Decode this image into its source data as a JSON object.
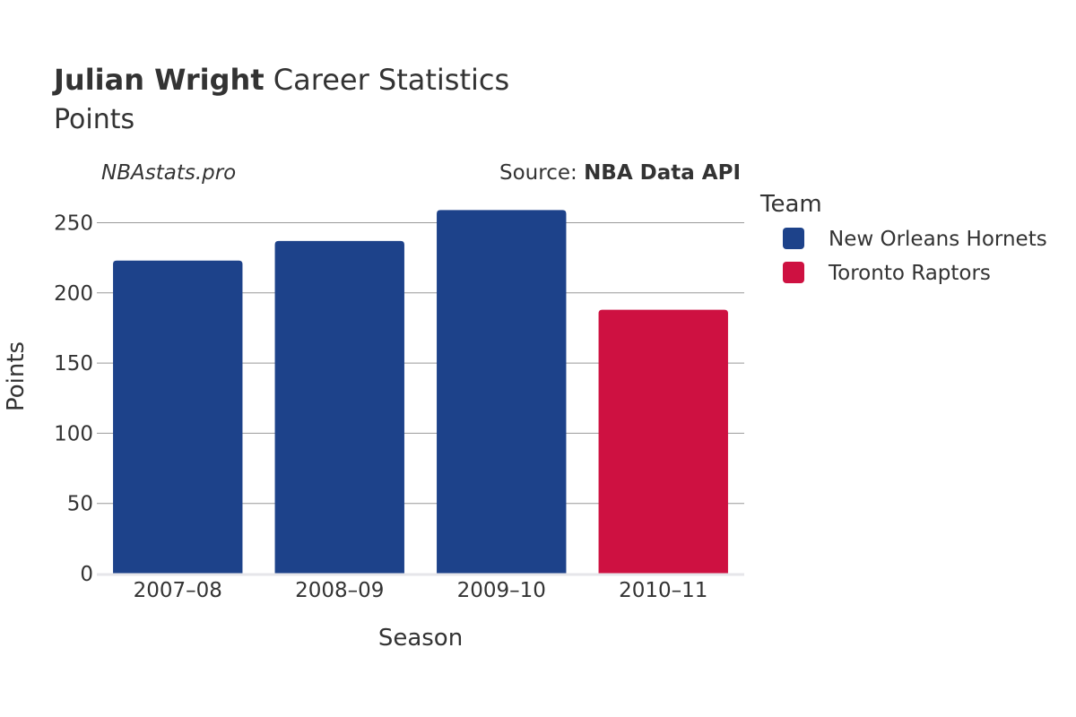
{
  "header": {
    "title_bold": "Julian Wright",
    "title_rest": " Career Statistics",
    "subtitle": "Points",
    "watermark": "NBAstats.pro",
    "source_prefix": "Source: ",
    "source_name": "NBA Data API"
  },
  "legend": {
    "title": "Team",
    "items": [
      {
        "label": "New Orleans Hornets",
        "color": "#1d428a"
      },
      {
        "label": "Toronto Raptors",
        "color": "#ce1141"
      }
    ]
  },
  "chart_data": {
    "type": "bar",
    "categories": [
      "2007–08",
      "2008–09",
      "2009–10",
      "2010–11"
    ],
    "values": [
      223,
      237,
      259,
      188
    ],
    "teams": [
      "New Orleans Hornets",
      "New Orleans Hornets",
      "New Orleans Hornets",
      "Toronto Raptors"
    ],
    "xlabel": "Season",
    "ylabel": "Points",
    "ylim": [
      0,
      265
    ],
    "yticks": [
      0,
      50,
      100,
      150,
      200,
      250
    ],
    "grid": true,
    "legend_position": "right"
  }
}
